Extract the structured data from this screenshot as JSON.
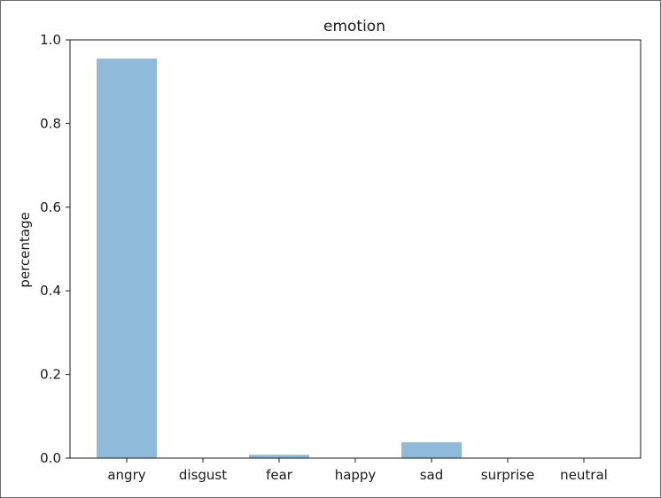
{
  "chart_data": {
    "type": "bar",
    "title": "emotion",
    "xlabel": "",
    "ylabel": "percentage",
    "categories": [
      "angry",
      "disgust",
      "fear",
      "happy",
      "sad",
      "surprise",
      "neutral"
    ],
    "values": [
      0.955,
      0.0,
      0.008,
      0.0,
      0.038,
      0.0,
      0.0
    ],
    "ylim": [
      0,
      1.0
    ],
    "yticks": [
      "0.0",
      "0.2",
      "0.4",
      "0.6",
      "0.8",
      "1.0"
    ],
    "bar_color": "#8fbad9",
    "grid": false,
    "legend": "none"
  }
}
